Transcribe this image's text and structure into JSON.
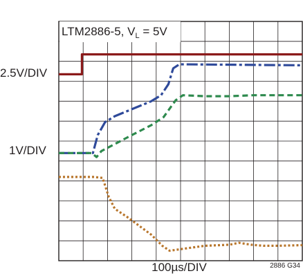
{
  "chart_data": {
    "type": "line",
    "annotation": {
      "part": "LTM2886-5, V",
      "subscript": "L",
      "suffix": " = 5V"
    },
    "left_labels": [
      "2.5V/DIV",
      "1V/DIV"
    ],
    "xlabel": "100µs/DIV",
    "figure_id": "2886 G34",
    "grid": true,
    "divisions": {
      "x": 10,
      "y": 12
    },
    "xlim": [
      0,
      10
    ],
    "ylim": [
      0,
      12
    ],
    "series": [
      {
        "color": "#8b1a1a",
        "dash": "solid",
        "points": [
          [
            0,
            9.35
          ],
          [
            0.95,
            9.35
          ],
          [
            0.95,
            10.35
          ],
          [
            10,
            10.35
          ]
        ]
      },
      {
        "color": "#2f4a9a",
        "dash": "longdash",
        "points": [
          [
            0,
            5.4
          ],
          [
            1.25,
            5.4
          ],
          [
            1.4,
            5.4
          ],
          [
            1.6,
            6.3
          ],
          [
            1.9,
            6.95
          ],
          [
            2.3,
            7.25
          ],
          [
            3.0,
            7.6
          ],
          [
            3.8,
            8.0
          ],
          [
            4.2,
            8.3
          ],
          [
            4.5,
            8.85
          ],
          [
            4.7,
            9.65
          ],
          [
            4.95,
            9.85
          ],
          [
            10,
            9.8
          ]
        ]
      },
      {
        "color": "#2e8a4e",
        "dash": "dash",
        "points": [
          [
            0,
            5.4
          ],
          [
            1.35,
            5.4
          ],
          [
            1.55,
            5.2
          ],
          [
            1.75,
            5.5
          ],
          [
            2.3,
            5.85
          ],
          [
            3.0,
            6.3
          ],
          [
            3.8,
            6.8
          ],
          [
            4.3,
            7.2
          ],
          [
            4.8,
            8.05
          ],
          [
            5.1,
            8.3
          ],
          [
            6.0,
            8.25
          ],
          [
            7.0,
            8.25
          ],
          [
            8.0,
            8.3
          ],
          [
            10,
            8.3
          ]
        ]
      },
      {
        "color": "#b8762c",
        "dash": "dot",
        "points": [
          [
            0,
            4.2
          ],
          [
            1.45,
            4.2
          ],
          [
            1.8,
            4.15
          ],
          [
            2.05,
            3.2
          ],
          [
            2.3,
            2.6
          ],
          [
            2.8,
            2.2
          ],
          [
            3.3,
            1.75
          ],
          [
            3.8,
            1.3
          ],
          [
            4.25,
            0.75
          ],
          [
            4.55,
            0.5
          ],
          [
            5.0,
            0.58
          ],
          [
            6.0,
            0.75
          ],
          [
            7.0,
            0.8
          ],
          [
            7.4,
            0.9
          ],
          [
            7.9,
            0.8
          ],
          [
            8.4,
            0.75
          ],
          [
            9.0,
            0.75
          ],
          [
            10,
            0.78
          ]
        ]
      }
    ]
  }
}
